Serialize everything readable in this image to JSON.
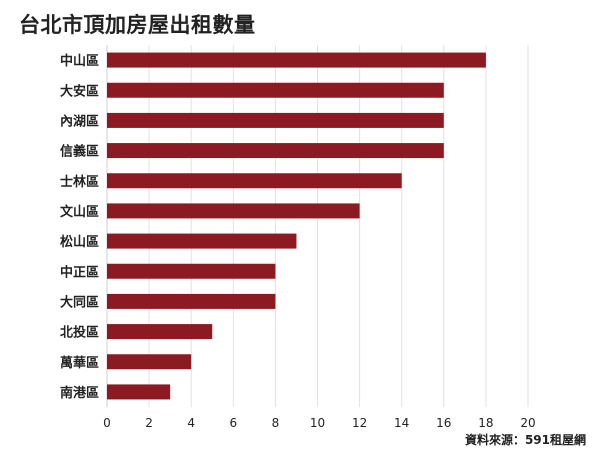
{
  "title": "台北市頂加房屋出租數量",
  "source": "資料來源：591租屋網",
  "colors": {
    "bar": "#8b1a22",
    "grid": "#e2e2e2",
    "text": "#222222"
  },
  "chart_data": {
    "type": "bar",
    "orientation": "horizontal",
    "title": "台北市頂加房屋出租數量",
    "categories": [
      "中山區",
      "大安區",
      "內湖區",
      "信義區",
      "士林區",
      "文山區",
      "松山區",
      "中正區",
      "大同區",
      "北投區",
      "萬華區",
      "南港區"
    ],
    "values": [
      18,
      16,
      16,
      16,
      14,
      12,
      9,
      8,
      8,
      5,
      4,
      3
    ],
    "xlim": [
      0,
      20
    ],
    "xticks": [
      0,
      2,
      4,
      6,
      8,
      10,
      12,
      14,
      16,
      18,
      20
    ],
    "grid": true,
    "legend": "none"
  }
}
